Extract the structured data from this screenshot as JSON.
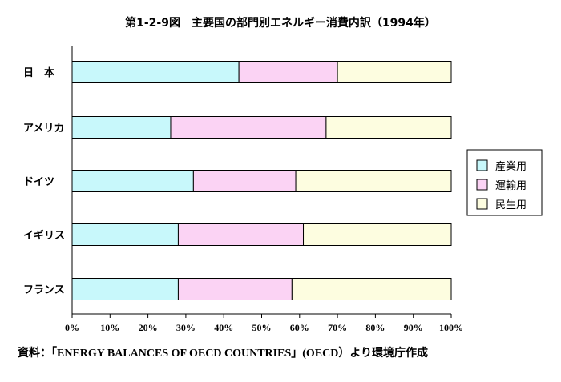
{
  "chart_data": {
    "type": "bar",
    "orientation": "horizontal",
    "stacked": true,
    "title": "第1-2-9図　主要国の部門別エネルギー消費内訳（1994年）",
    "categories": [
      "日　本",
      "アメリカ",
      "ドイツ",
      "イギリス",
      "フランス"
    ],
    "series": [
      {
        "name": "産業用",
        "color": "#c8f8fb",
        "values": [
          44,
          26,
          32,
          28,
          28
        ]
      },
      {
        "name": "運輸用",
        "color": "#fbd3f4",
        "values": [
          26,
          41,
          27,
          33,
          30
        ]
      },
      {
        "name": "民生用",
        "color": "#fdfde0",
        "values": [
          30,
          33,
          41,
          39,
          42
        ]
      }
    ],
    "xlim": [
      0,
      100
    ],
    "xticks": [
      "0%",
      "10%",
      "20%",
      "30%",
      "40%",
      "50%",
      "60%",
      "70%",
      "80%",
      "90%",
      "100%"
    ],
    "grid": false,
    "legend_position": "right"
  },
  "source": "資料：「ENERGY BALANCES OF OECD COUNTRIES」(OECD）より環境庁作成"
}
